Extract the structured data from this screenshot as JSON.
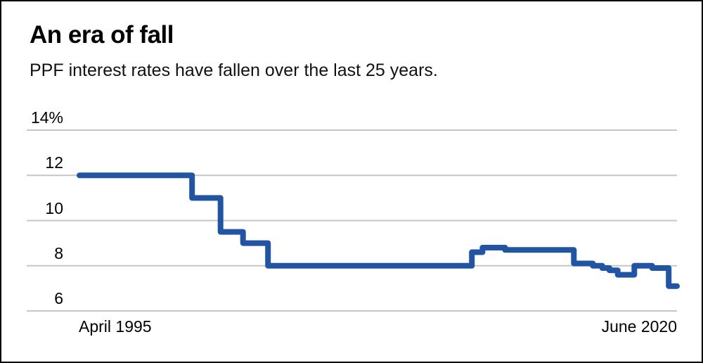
{
  "chart_data": {
    "type": "line",
    "line_style": "step",
    "title": "An era of fall",
    "subtitle": "PPF interest rates have fallen over the last 25 years.",
    "series_name": "PPF interest rate (%)",
    "x_axis": {
      "start_label": "April 1995",
      "end_label": "June 2020",
      "start_year": 1995.25,
      "end_year": 2020.45
    },
    "y_axis": {
      "tick_labels": [
        "14%",
        "12",
        "10",
        "8",
        "6"
      ],
      "tick_values": [
        14,
        12,
        10,
        8,
        6
      ],
      "ylim": [
        6,
        14
      ],
      "grid": true
    },
    "legend": "none",
    "colors": {
      "line": "#2154a3",
      "grid": "#c6c6c6",
      "text": "#000000",
      "background": "#ffffff",
      "border": "#000000"
    },
    "steps": [
      {
        "from": 1995.25,
        "to": 2000.0,
        "rate": 12.0
      },
      {
        "from": 2000.0,
        "to": 2001.2,
        "rate": 11.0
      },
      {
        "from": 2001.2,
        "to": 2002.15,
        "rate": 9.5
      },
      {
        "from": 2002.15,
        "to": 2003.2,
        "rate": 9.0
      },
      {
        "from": 2003.2,
        "to": 2011.8,
        "rate": 8.0
      },
      {
        "from": 2011.8,
        "to": 2012.25,
        "rate": 8.6
      },
      {
        "from": 2012.25,
        "to": 2013.2,
        "rate": 8.8
      },
      {
        "from": 2013.2,
        "to": 2016.1,
        "rate": 8.7
      },
      {
        "from": 2016.1,
        "to": 2016.9,
        "rate": 8.1
      },
      {
        "from": 2016.9,
        "to": 2017.3,
        "rate": 8.0
      },
      {
        "from": 2017.3,
        "to": 2017.6,
        "rate": 7.9
      },
      {
        "from": 2017.6,
        "to": 2017.95,
        "rate": 7.8
      },
      {
        "from": 2017.95,
        "to": 2018.65,
        "rate": 7.6
      },
      {
        "from": 2018.65,
        "to": 2019.4,
        "rate": 8.0
      },
      {
        "from": 2019.4,
        "to": 2020.1,
        "rate": 7.9
      },
      {
        "from": 2020.1,
        "to": 2020.45,
        "rate": 7.1
      }
    ]
  }
}
